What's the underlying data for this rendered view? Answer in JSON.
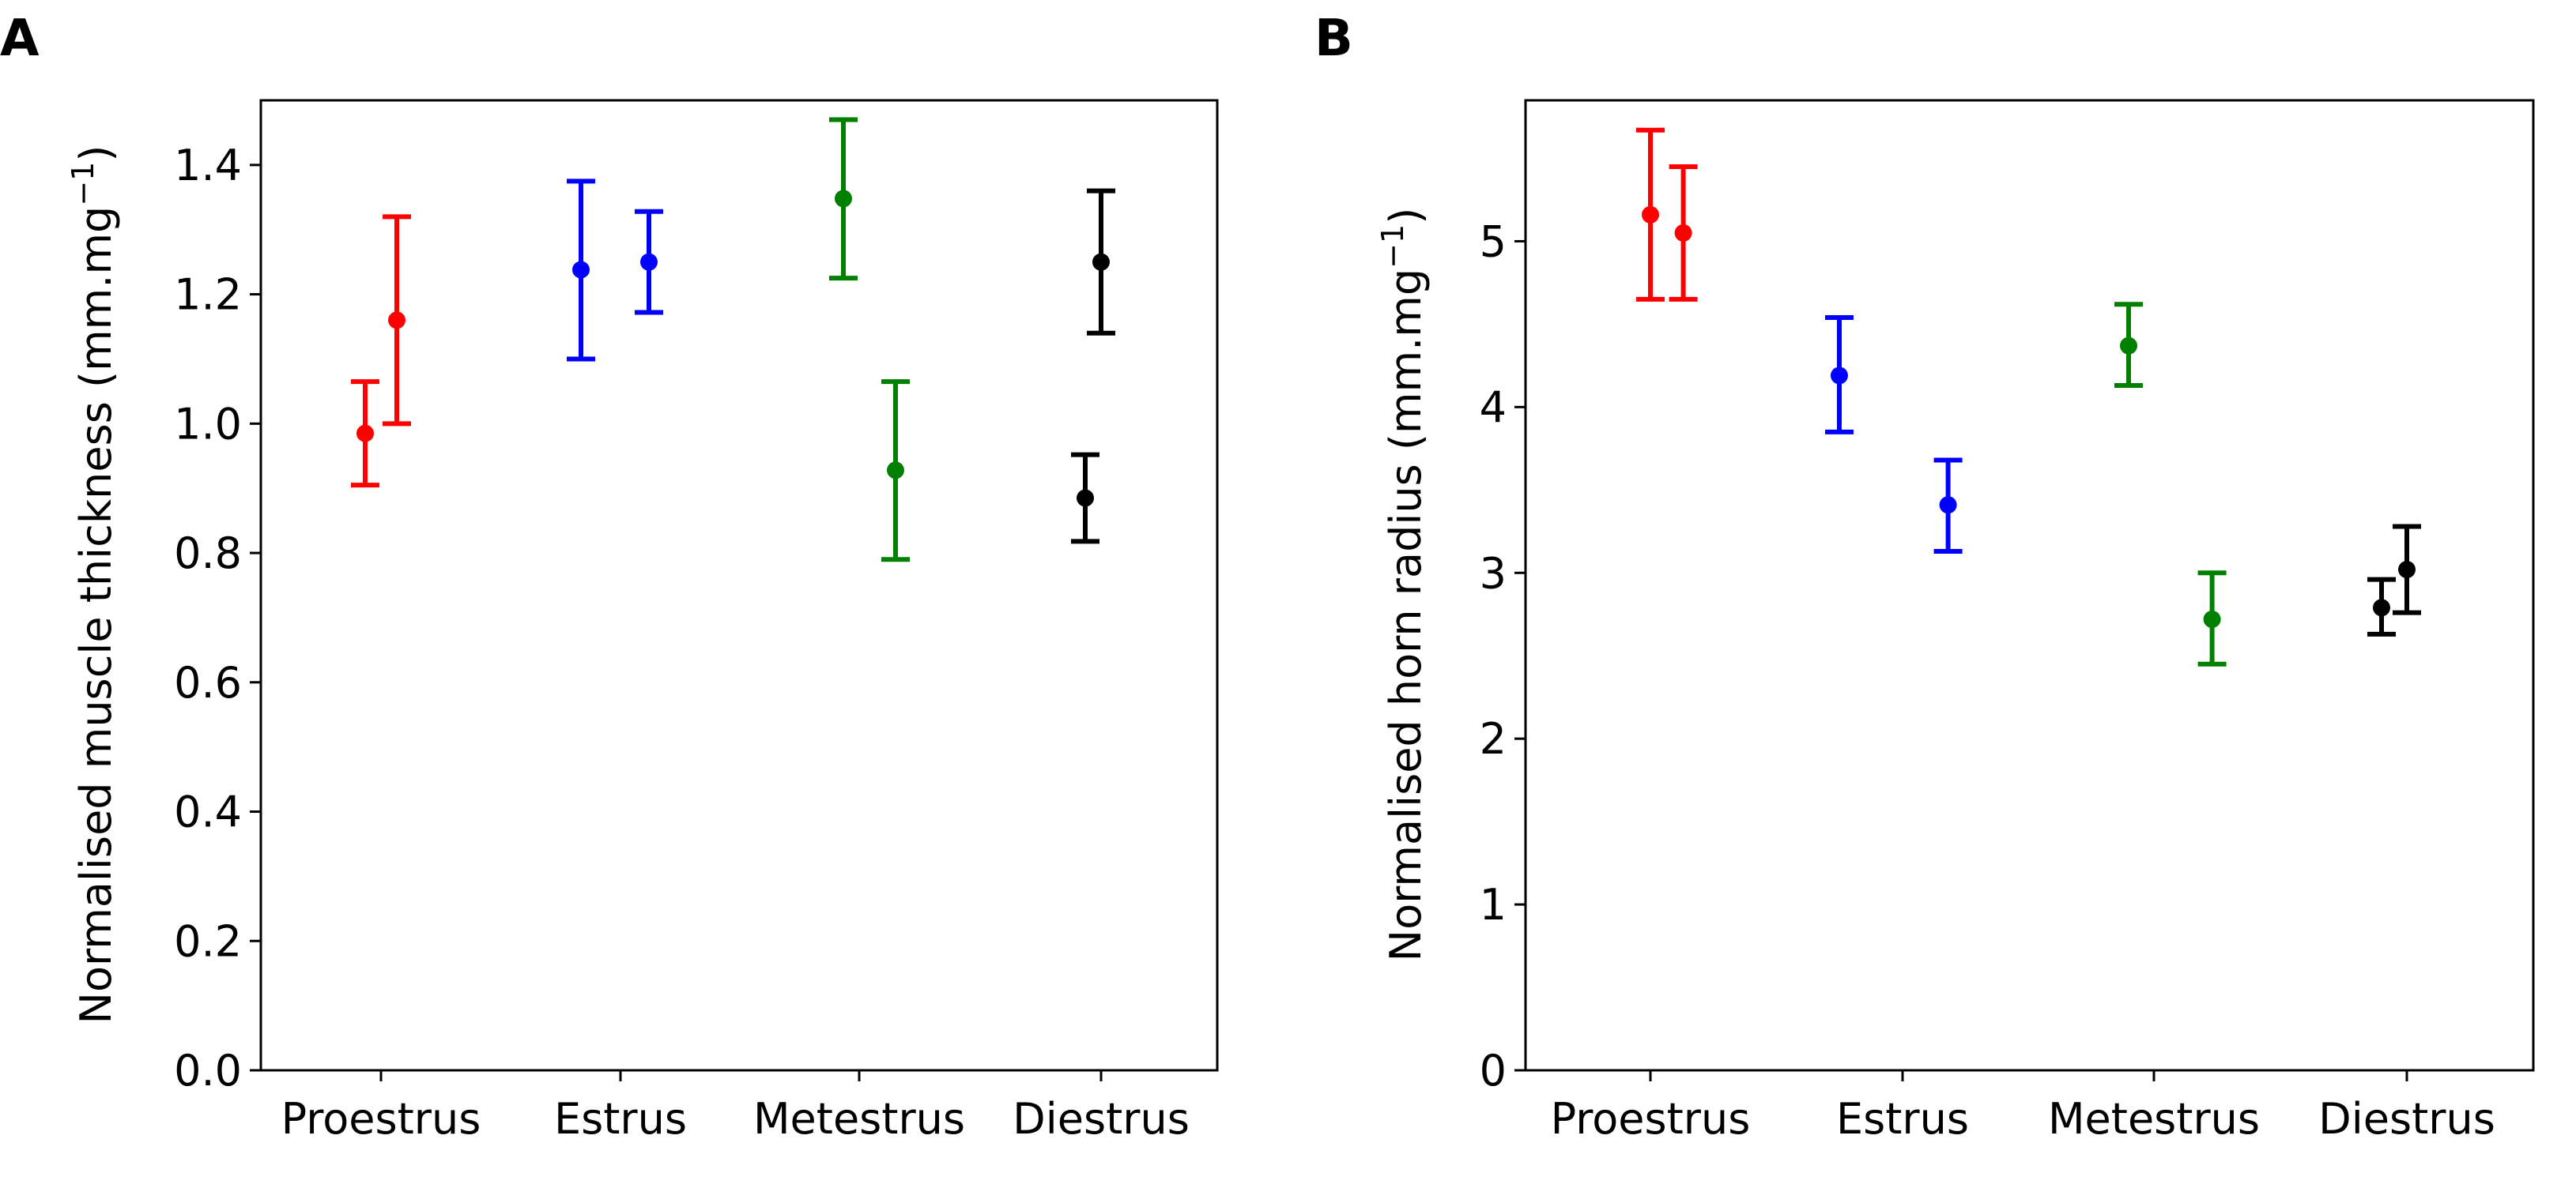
{
  "chart_data": [
    {
      "panel": "A",
      "type": "scatter",
      "categories": [
        "Proestrus",
        "Estrus",
        "Metestrus",
        "Diestrus"
      ],
      "ylabel": "Normalised muscle thickness (mm.mg",
      "ylabel_sup": "−1",
      "ylabel_close": ")",
      "ylim": [
        0,
        1.5
      ],
      "yticks": [
        "0.0",
        "0.2",
        "0.4",
        "0.6",
        "0.8",
        "1.0",
        "1.2",
        "1.4"
      ],
      "yticks_values": [
        0,
        0.2,
        0.4,
        0.6,
        0.8,
        1.0,
        1.2,
        1.4
      ],
      "grid": false,
      "points": [
        {
          "category": "Proestrus",
          "offset": -0.1,
          "y": 0.985,
          "low": 0.905,
          "high": 1.065,
          "color": "#ff0000"
        },
        {
          "category": "Proestrus",
          "offset": 0.1,
          "y": 1.16,
          "low": 1.0,
          "high": 1.32,
          "color": "#ff0000"
        },
        {
          "category": "Estrus",
          "offset": -0.25,
          "y": 1.238,
          "low": 1.1,
          "high": 1.375,
          "color": "#0000ff"
        },
        {
          "category": "Estrus",
          "offset": 0.18,
          "y": 1.25,
          "low": 1.172,
          "high": 1.328,
          "color": "#0000ff"
        },
        {
          "category": "Metestrus",
          "offset": -0.1,
          "y": 1.348,
          "low": 1.225,
          "high": 1.47,
          "color": "#008000"
        },
        {
          "category": "Metestrus",
          "offset": 0.23,
          "y": 0.928,
          "low": 0.79,
          "high": 1.065,
          "color": "#008000"
        },
        {
          "category": "Diestrus",
          "offset": -0.1,
          "y": 0.885,
          "low": 0.818,
          "high": 0.952,
          "color": "#000000"
        },
        {
          "category": "Diestrus",
          "offset": 0.0,
          "y": 1.25,
          "low": 1.14,
          "high": 1.36,
          "color": "#000000"
        }
      ]
    },
    {
      "panel": "B",
      "type": "scatter",
      "categories": [
        "Proestrus",
        "Estrus",
        "Metestrus",
        "Diestrus"
      ],
      "ylabel": "Normalised horn radius (mm.mg",
      "ylabel_sup": "−1",
      "ylabel_close": ")",
      "ylim": [
        0,
        5.85
      ],
      "yticks": [
        "0",
        "1",
        "2",
        "3",
        "4",
        "5"
      ],
      "yticks_values": [
        0,
        1,
        2,
        3,
        4,
        5
      ],
      "grid": false,
      "points": [
        {
          "category": "Proestrus",
          "offset": 0.0,
          "y": 5.16,
          "low": 4.65,
          "high": 5.67,
          "color": "#ff0000"
        },
        {
          "category": "Proestrus",
          "offset": 0.13,
          "y": 5.05,
          "low": 4.65,
          "high": 5.45,
          "color": "#ff0000"
        },
        {
          "category": "Estrus",
          "offset": -0.25,
          "y": 4.19,
          "low": 3.85,
          "high": 4.54,
          "color": "#0000ff"
        },
        {
          "category": "Estrus",
          "offset": 0.18,
          "y": 3.41,
          "low": 3.13,
          "high": 3.68,
          "color": "#0000ff"
        },
        {
          "category": "Metestrus",
          "offset": -0.1,
          "y": 4.37,
          "low": 4.13,
          "high": 4.62,
          "color": "#008000"
        },
        {
          "category": "Metestrus",
          "offset": 0.23,
          "y": 2.72,
          "low": 2.45,
          "high": 3.0,
          "color": "#008000"
        },
        {
          "category": "Diestrus",
          "offset": -0.1,
          "y": 2.79,
          "low": 2.63,
          "high": 2.96,
          "color": "#000000"
        },
        {
          "category": "Diestrus",
          "offset": 0.0,
          "y": 3.02,
          "low": 2.76,
          "high": 3.28,
          "color": "#000000"
        }
      ]
    }
  ],
  "panel_labels": [
    "A",
    "B"
  ]
}
